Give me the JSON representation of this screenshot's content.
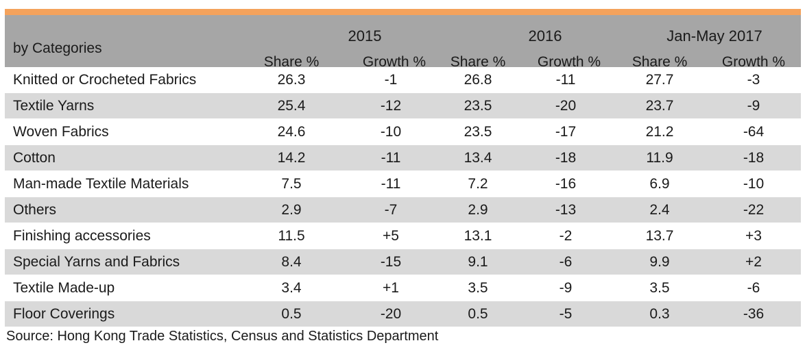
{
  "header": {
    "category_label": "by Categories",
    "years": [
      "2015",
      "2016",
      "Jan-May 2017"
    ],
    "share_label": "Share %",
    "growth_label": "Growth %"
  },
  "rows": [
    {
      "name": "Knitted or Crocheted Fabrics",
      "values": [
        "26.3",
        "-1",
        "26.8",
        "-11",
        "27.7",
        "-3"
      ]
    },
    {
      "name": "Textile Yarns",
      "values": [
        "25.4",
        "-12",
        "23.5",
        "-20",
        "23.7",
        "-9"
      ]
    },
    {
      "name": "Woven Fabrics",
      "values": [
        "24.6",
        "-10",
        "23.5",
        "-17",
        "21.2",
        "-64"
      ]
    },
    {
      "name": "Cotton",
      "values": [
        "14.2",
        "-11",
        "13.4",
        "-18",
        "11.9",
        "-18"
      ]
    },
    {
      "name": "Man-made Textile Materials",
      "values": [
        "7.5",
        "-11",
        "7.2",
        "-16",
        "6.9",
        "-10"
      ]
    },
    {
      "name": "Others",
      "values": [
        "2.9",
        "-7",
        "2.9",
        "-13",
        "2.4",
        "-22"
      ]
    },
    {
      "name": "Finishing accessories",
      "values": [
        "11.5",
        "+5",
        "13.1",
        "-2",
        "13.7",
        "+3"
      ]
    },
    {
      "name": "Special Yarns and Fabrics",
      "values": [
        "8.4",
        "-15",
        "9.1",
        "-6",
        "9.9",
        "+2"
      ]
    },
    {
      "name": "Textile Made-up",
      "values": [
        "3.4",
        "+1",
        "3.5",
        "-9",
        "3.5",
        "-6"
      ]
    },
    {
      "name": "Floor Coverings",
      "values": [
        "0.5",
        "-20",
        "0.5",
        "-5",
        "0.3",
        "-36"
      ]
    }
  ],
  "source": "Source: Hong Kong Trade Statistics, Census and Statistics Department",
  "colors": {
    "accent": "#f4a25c",
    "header_bg": "#a6a6a6",
    "band_bg": "#d9d9d9"
  }
}
